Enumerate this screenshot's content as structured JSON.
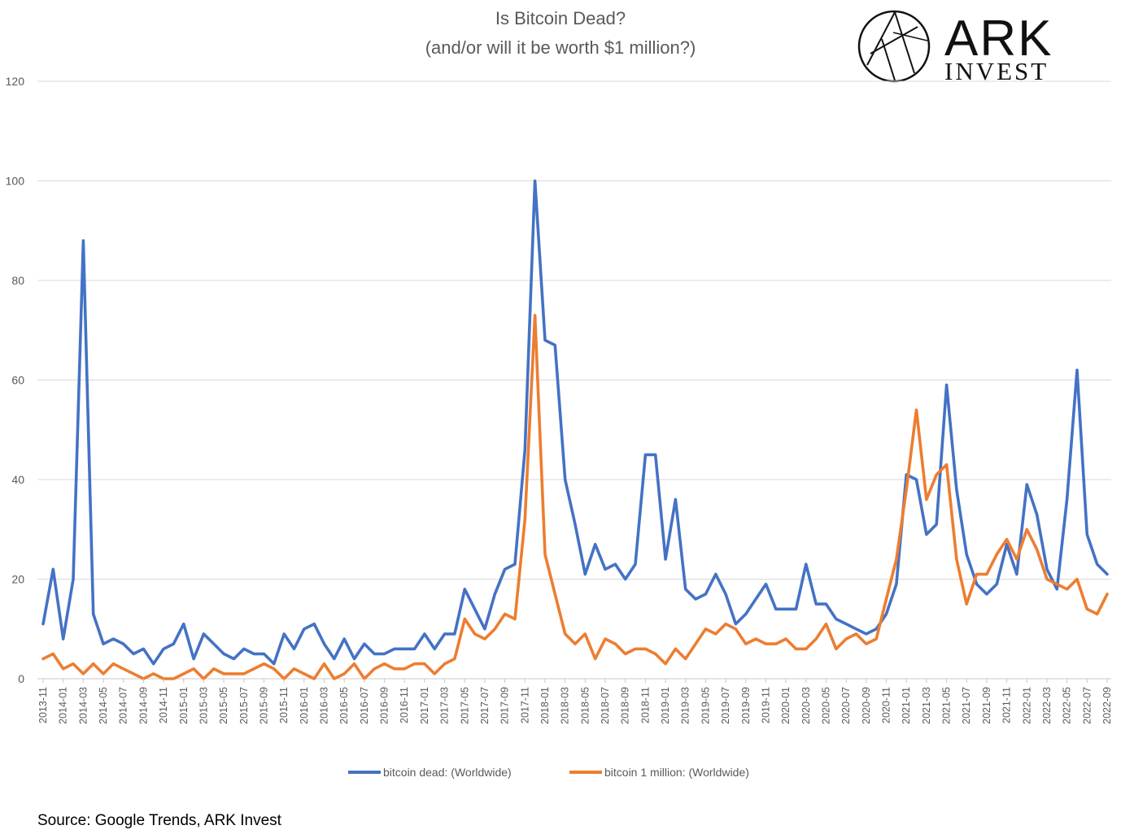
{
  "chart_data": {
    "type": "line",
    "title": "Is Bitcoin Dead?",
    "subtitle": "(and/or will it be worth $1 million?)",
    "xlabel": "",
    "ylabel": "",
    "ylim": [
      0,
      120
    ],
    "yticks": [
      0,
      20,
      40,
      60,
      80,
      100,
      120
    ],
    "grid": true,
    "legend_position": "bottom",
    "x": [
      "2013-11",
      "2013-12",
      "2014-01",
      "2014-02",
      "2014-03",
      "2014-04",
      "2014-05",
      "2014-06",
      "2014-07",
      "2014-08",
      "2014-09",
      "2014-10",
      "2014-11",
      "2014-12",
      "2015-01",
      "2015-02",
      "2015-03",
      "2015-04",
      "2015-05",
      "2015-06",
      "2015-07",
      "2015-08",
      "2015-09",
      "2015-10",
      "2015-11",
      "2015-12",
      "2016-01",
      "2016-02",
      "2016-03",
      "2016-04",
      "2016-05",
      "2016-06",
      "2016-07",
      "2016-08",
      "2016-09",
      "2016-10",
      "2016-11",
      "2016-12",
      "2017-01",
      "2017-02",
      "2017-03",
      "2017-04",
      "2017-05",
      "2017-06",
      "2017-07",
      "2017-08",
      "2017-09",
      "2017-10",
      "2017-11",
      "2017-12",
      "2018-01",
      "2018-02",
      "2018-03",
      "2018-04",
      "2018-05",
      "2018-06",
      "2018-07",
      "2018-08",
      "2018-09",
      "2018-10",
      "2018-11",
      "2018-12",
      "2019-01",
      "2019-02",
      "2019-03",
      "2019-04",
      "2019-05",
      "2019-06",
      "2019-07",
      "2019-08",
      "2019-09",
      "2019-10",
      "2019-11",
      "2019-12",
      "2020-01",
      "2020-02",
      "2020-03",
      "2020-04",
      "2020-05",
      "2020-06",
      "2020-07",
      "2020-08",
      "2020-09",
      "2020-10",
      "2020-11",
      "2020-12",
      "2021-01",
      "2021-02",
      "2021-03",
      "2021-04",
      "2021-05",
      "2021-06",
      "2021-07",
      "2021-08",
      "2021-09",
      "2021-10",
      "2021-11",
      "2021-12",
      "2022-01",
      "2022-02",
      "2022-03",
      "2022-04",
      "2022-05",
      "2022-06",
      "2022-07",
      "2022-08",
      "2022-09"
    ],
    "x_tick_labels": [
      "2013-11",
      "2014-01",
      "2014-03",
      "2014-05",
      "2014-07",
      "2014-09",
      "2014-11",
      "2015-01",
      "2015-03",
      "2015-05",
      "2015-07",
      "2015-09",
      "2015-11",
      "2016-01",
      "2016-03",
      "2016-05",
      "2016-07",
      "2016-09",
      "2016-11",
      "2017-01",
      "2017-03",
      "2017-05",
      "2017-07",
      "2017-09",
      "2017-11",
      "2018-01",
      "2018-03",
      "2018-05",
      "2018-07",
      "2018-09",
      "2018-11",
      "2019-01",
      "2019-03",
      "2019-05",
      "2019-07",
      "2019-09",
      "2019-11",
      "2020-01",
      "2020-03",
      "2020-05",
      "2020-07",
      "2020-09",
      "2020-11",
      "2021-01",
      "2021-03",
      "2021-05",
      "2021-07",
      "2021-09",
      "2021-11",
      "2022-01",
      "2022-03",
      "2022-05",
      "2022-07",
      "2022-09"
    ],
    "series": [
      {
        "name": "bitcoin dead: (Worldwide)",
        "color": "#4472C4",
        "values": [
          11,
          22,
          8,
          20,
          88,
          13,
          7,
          8,
          7,
          5,
          6,
          3,
          6,
          7,
          11,
          4,
          9,
          7,
          5,
          4,
          6,
          5,
          5,
          3,
          9,
          6,
          10,
          11,
          7,
          4,
          8,
          4,
          7,
          5,
          5,
          6,
          6,
          6,
          9,
          6,
          9,
          9,
          18,
          14,
          10,
          17,
          22,
          23,
          46,
          100,
          68,
          67,
          40,
          31,
          21,
          27,
          22,
          23,
          20,
          23,
          45,
          45,
          24,
          36,
          18,
          16,
          17,
          21,
          17,
          11,
          13,
          16,
          19,
          14,
          14,
          14,
          23,
          15,
          15,
          12,
          11,
          10,
          9,
          10,
          13,
          19,
          41,
          40,
          29,
          31,
          59,
          38,
          25,
          19,
          17,
          19,
          27,
          21,
          39,
          33,
          22,
          18,
          36,
          62,
          29,
          23,
          21
        ]
      },
      {
        "name": "bitcoin 1 million: (Worldwide)",
        "color": "#ED7D31",
        "values": [
          4,
          5,
          2,
          3,
          1,
          3,
          1,
          3,
          2,
          1,
          0,
          1,
          0,
          0,
          1,
          2,
          0,
          2,
          1,
          1,
          1,
          2,
          3,
          2,
          0,
          2,
          1,
          0,
          3,
          0,
          1,
          3,
          0,
          2,
          3,
          2,
          2,
          3,
          3,
          1,
          3,
          4,
          12,
          9,
          8,
          10,
          13,
          12,
          32,
          73,
          25,
          17,
          9,
          7,
          9,
          4,
          8,
          7,
          5,
          6,
          6,
          5,
          3,
          6,
          4,
          7,
          10,
          9,
          11,
          10,
          7,
          8,
          7,
          7,
          8,
          6,
          6,
          8,
          11,
          6,
          8,
          9,
          7,
          8,
          16,
          24,
          38,
          54,
          36,
          41,
          43,
          24,
          15,
          21,
          21,
          25,
          28,
          24,
          30,
          26,
          20,
          19,
          18,
          20,
          14,
          13,
          17
        ]
      }
    ]
  },
  "logo": {
    "name_line1": "ARK",
    "name_line2": "INVEST"
  },
  "source": "Source: Google Trends, ARK Invest"
}
